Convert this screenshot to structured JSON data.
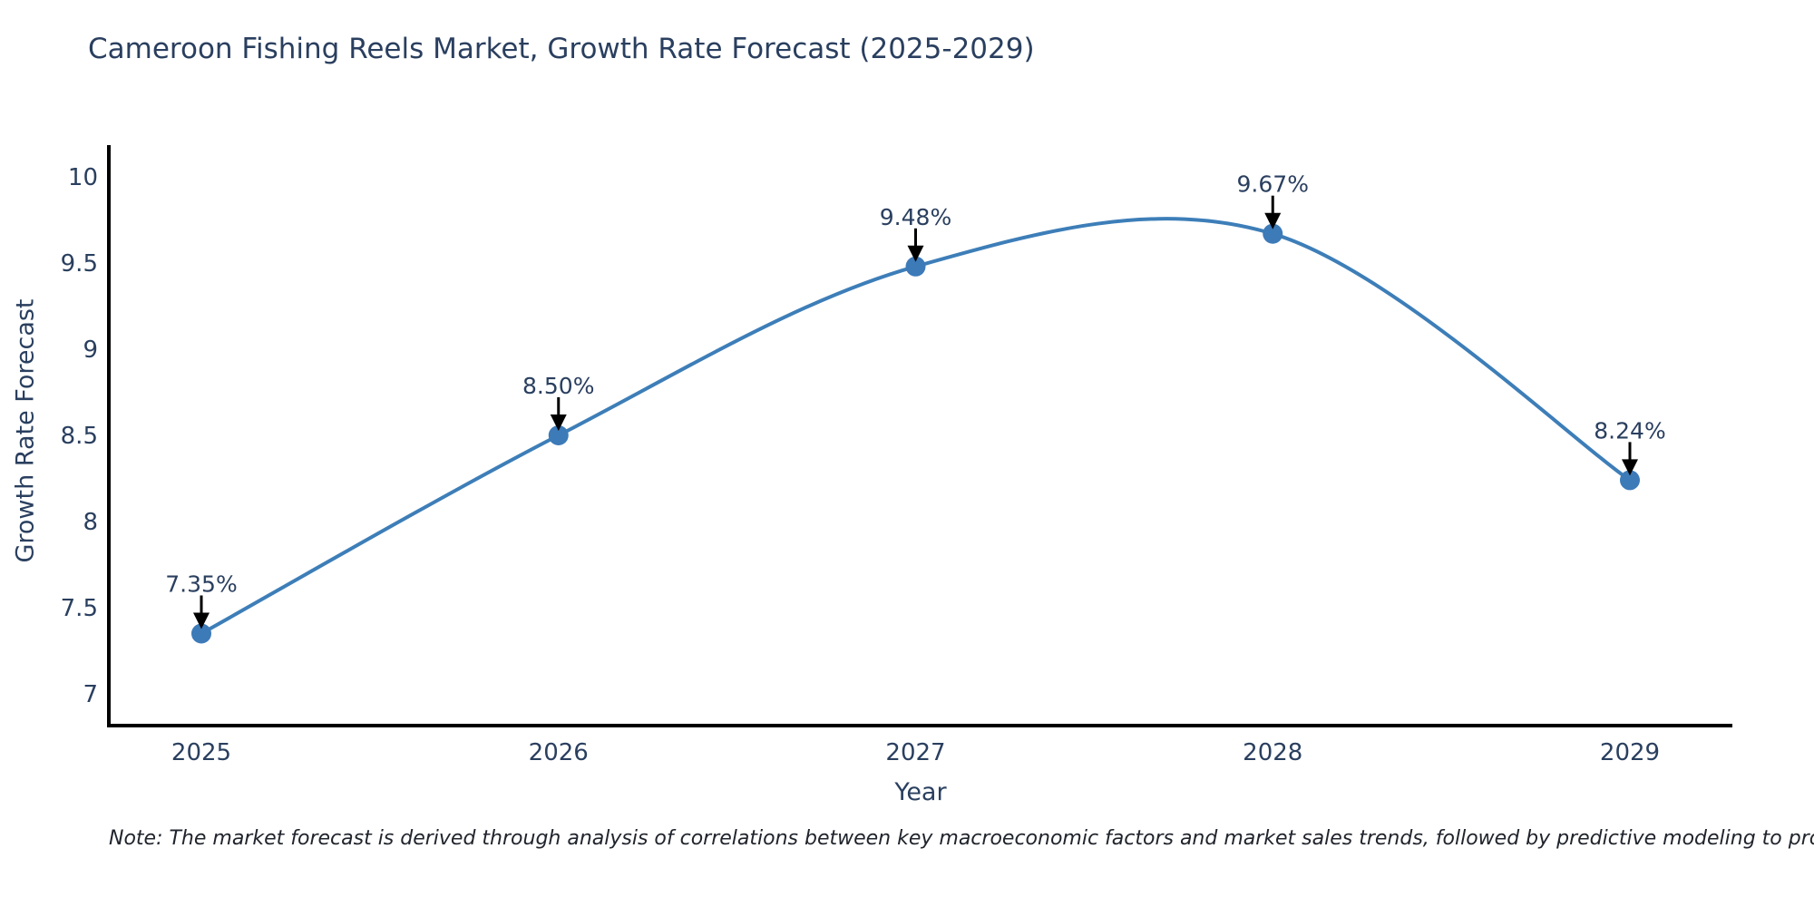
{
  "title": "Cameroon Fishing Reels Market, Growth Rate Forecast (2025-2029)",
  "note": "Note: The market forecast is derived through analysis of correlations between key macroeconomic factors and market sales trends, followed by predictive modeling to project future sales",
  "colors": {
    "text": "#2a3f5f",
    "axis_line": "#000000",
    "line": "#3d7eb8",
    "marker": "#3d7ab8",
    "arrow": "#000000",
    "background": "#ffffff"
  },
  "chart_data": {
    "type": "line",
    "title": "Cameroon Fishing Reels Market, Growth Rate Forecast (2025-2029)",
    "xlabel": "Year",
    "ylabel": "Growth Rate Forecast",
    "x": [
      2025,
      2026,
      2027,
      2028,
      2029
    ],
    "values": [
      7.35,
      8.5,
      9.48,
      9.67,
      8.24
    ],
    "point_labels": [
      "7.35%",
      "8.50%",
      "9.48%",
      "9.67%",
      "8.24%"
    ],
    "xticks": [
      "2025",
      "2026",
      "2027",
      "2028",
      "2029"
    ],
    "yticks": [
      7,
      7.5,
      8,
      8.5,
      9,
      9.5,
      10
    ],
    "ytick_labels": [
      "7",
      "7.5",
      "8",
      "8.5",
      "9",
      "9.5",
      "10"
    ],
    "ylim": [
      6.82,
      10.18
    ],
    "line_shape": "spline",
    "grid": false,
    "legend_position": "none",
    "annotations_have_arrows": true
  }
}
